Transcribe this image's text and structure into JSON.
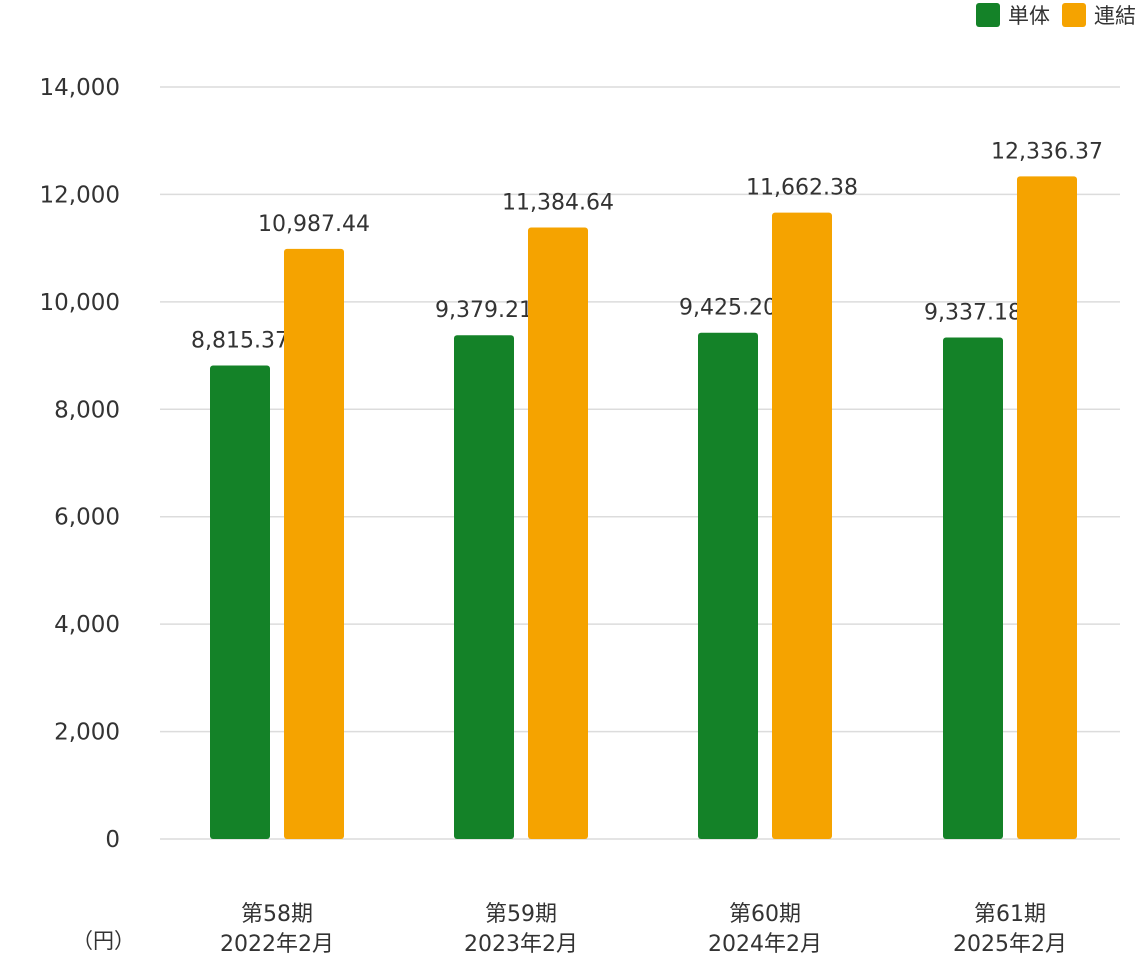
{
  "legend": {
    "items": [
      {
        "label": "単体",
        "color": "#148228"
      },
      {
        "label": "連結",
        "color": "#f5a300"
      }
    ]
  },
  "unit_label": "（円）",
  "chart_data": {
    "type": "bar",
    "categories": [
      {
        "period": "第58期",
        "date": "2022年2月"
      },
      {
        "period": "第59期",
        "date": "2023年2月"
      },
      {
        "period": "第60期",
        "date": "2024年2月"
      },
      {
        "period": "第61期",
        "date": "2025年2月"
      }
    ],
    "series": [
      {
        "name": "単体",
        "color": "#148228",
        "values": [
          8815.37,
          9379.21,
          9425.2,
          9337.18
        ],
        "labels": [
          "8,815.37",
          "9,379.21",
          "9,425.20",
          "9,337.18"
        ]
      },
      {
        "name": "連結",
        "color": "#f5a300",
        "values": [
          10987.44,
          11384.64,
          11662.38,
          12336.37
        ],
        "labels": [
          "10,987.44",
          "11,384.64",
          "11,662.38",
          "12,336.37"
        ]
      }
    ],
    "ylim": [
      0,
      14000
    ],
    "yticks": [
      {
        "value": 0,
        "label": "0"
      },
      {
        "value": 2000,
        "label": "2,000"
      },
      {
        "value": 4000,
        "label": "4,000"
      },
      {
        "value": 6000,
        "label": "6,000"
      },
      {
        "value": 8000,
        "label": "8,000"
      },
      {
        "value": 10000,
        "label": "10,000"
      },
      {
        "value": 12000,
        "label": "12,000"
      },
      {
        "value": 14000,
        "label": "14,000"
      }
    ],
    "grid": true,
    "legend_position": "top-right",
    "ylabel": "（円）"
  }
}
